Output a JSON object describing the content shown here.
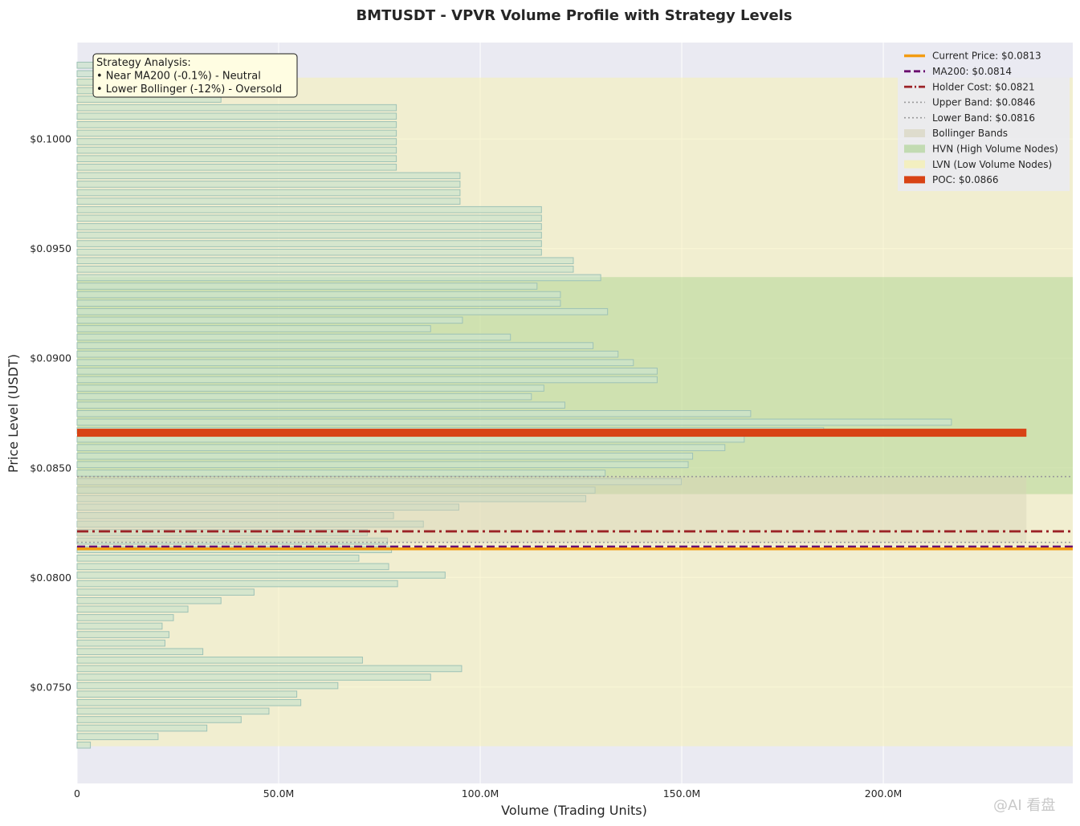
{
  "chart_data": {
    "type": "bar",
    "orientation": "horizontal",
    "title": "BMTUSDT - VPVR Volume Profile with Strategy Levels",
    "xlabel": "Volume (Trading Units)",
    "ylabel": "Price Level (USDT)",
    "xlim": [
      0,
      247000000
    ],
    "ylim": [
      0.0706,
      0.1044
    ],
    "x_ticks": [
      {
        "value": 0,
        "label": "0"
      },
      {
        "value": 50000000,
        "label": "50.0M"
      },
      {
        "value": 100000000,
        "label": "100.0M"
      },
      {
        "value": 150000000,
        "label": "150.0M"
      },
      {
        "value": 200000000,
        "label": "200.0M"
      }
    ],
    "y_ticks": [
      {
        "value": 0.075,
        "label": "$0.0750"
      },
      {
        "value": 0.08,
        "label": "$0.0800"
      },
      {
        "value": 0.085,
        "label": "$0.0850"
      },
      {
        "value": 0.09,
        "label": "$0.0900"
      },
      {
        "value": 0.095,
        "label": "$0.0950"
      },
      {
        "value": 0.1,
        "label": "$0.1000"
      }
    ],
    "grid": true,
    "legend_position": "top-right",
    "bins": {
      "price_start": 0.07235,
      "price_step": 0.0003877,
      "bar_height_fraction": 0.72,
      "volumes_millions": [
        3.3,
        20.1,
        32.2,
        40.7,
        47.6,
        55.5,
        54.5,
        64.7,
        87.7,
        95.4,
        70.8,
        31.2,
        21.8,
        22.8,
        21.1,
        23.9,
        27.5,
        35.7,
        43.9,
        79.5,
        91.3,
        77.3,
        69.9,
        78.0,
        77.0,
        72.0,
        85.9,
        78.5,
        94.7,
        126.2,
        128.5,
        149.9,
        131.0,
        151.6,
        152.7,
        160.7,
        165.5,
        185.2,
        216.9,
        167.1,
        121.0,
        112.7,
        115.8,
        143.9,
        143.9,
        138.0,
        134.2,
        128.0,
        107.5,
        87.7,
        95.6,
        131.6,
        119.9,
        119.9,
        114.1,
        129.9,
        123.1,
        123.1,
        115.2,
        115.2,
        115.2,
        115.2,
        115.2,
        115.2,
        95.0,
        95.0,
        95.0,
        95.0,
        79.2,
        79.2,
        79.2,
        79.2,
        79.2,
        79.2,
        79.2,
        79.2,
        35.7,
        35.7,
        35.7,
        35.7,
        35.7
      ]
    },
    "levels": {
      "current_price": 0.0813,
      "ma200": 0.0814,
      "holder_cost": 0.0821,
      "upper_band": 0.0846,
      "lower_band": 0.0816,
      "poc": 0.0866,
      "poc_volume": 235500000
    },
    "regions": {
      "lvn": [
        0.0723,
        0.1028
      ],
      "hvn": [
        0.0838,
        0.0937
      ],
      "bollinger": [
        0.0816,
        0.0846
      ],
      "bollinger_volume_extent": 235500000
    },
    "colors": {
      "plot_background": "#eaeaf2",
      "bar_fill": "#cce3cc",
      "bar_edge": "#9ec2b6",
      "hvn": "#a7d18a",
      "lvn": "#f5f0b4",
      "bollinger": "#d6d2b8",
      "current_price": "#f39c12",
      "ma200": "#6a0a6e",
      "holder_cost": "#9b2226",
      "band_line": "#9a9a9a",
      "poc": "#d84315",
      "annotation_box": "#fffde2"
    },
    "legend": [
      {
        "label": "Current Price: $0.0813",
        "kind": "line",
        "style": "solid",
        "color_key": "current_price"
      },
      {
        "label": "MA200: $0.0814",
        "kind": "line",
        "style": "dashed",
        "color_key": "ma200"
      },
      {
        "label": "Holder Cost: $0.0821",
        "kind": "line",
        "style": "dashdot",
        "color_key": "holder_cost"
      },
      {
        "label": "Upper Band: $0.0846",
        "kind": "line",
        "style": "dotted",
        "color_key": "band_line"
      },
      {
        "label": "Lower Band: $0.0816",
        "kind": "line",
        "style": "dotted",
        "color_key": "band_line"
      },
      {
        "label": "Bollinger Bands",
        "kind": "patch",
        "color_key": "bollinger"
      },
      {
        "label": "HVN (High Volume Nodes)",
        "kind": "patch",
        "color_key": "hvn"
      },
      {
        "label": "LVN (Low Volume Nodes)",
        "kind": "patch",
        "color_key": "lvn"
      },
      {
        "label": "POC: $0.0866",
        "kind": "thick",
        "color_key": "poc"
      }
    ],
    "annotation": {
      "lines": [
        "Strategy Analysis:",
        "• Near MA200 (-0.1%) - Neutral",
        "• Lower Bollinger (-12%) - Oversold"
      ]
    }
  },
  "watermark": "@AI 看盘"
}
